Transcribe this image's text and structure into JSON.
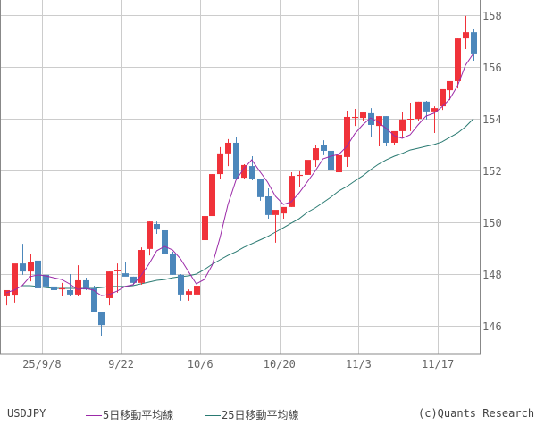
{
  "chart_data": {
    "type": "candlestick",
    "title": "USDJPY",
    "symbol": "USDJPY",
    "xlabel": "",
    "ylabel": "",
    "ylim": [
      144.9,
      158.6
    ],
    "yticks": [
      146,
      148,
      150,
      152,
      154,
      156,
      158
    ],
    "xticks": [
      {
        "label": "25/9/8",
        "index": 5
      },
      {
        "label": "9/22",
        "index": 15
      },
      {
        "label": "10/6",
        "index": 25
      },
      {
        "label": "10/20",
        "index": 35
      },
      {
        "label": "11/3",
        "index": 45
      },
      {
        "label": "11/17",
        "index": 55
      }
    ],
    "grid": true,
    "colors": {
      "up": "#f0323a",
      "down": "#4c87bb",
      "ma5": "#9b2aa8",
      "ma25": "#2a7a72",
      "grid": "#cccccc",
      "axis": "#888888"
    },
    "series": [
      {
        "name": "USDJPY",
        "ohlc": [
          [
            147.14,
            147.28,
            146.79,
            147.38
          ],
          [
            147.17,
            148.38,
            146.9,
            148.41
          ],
          [
            148.41,
            149.17,
            147.97,
            148.1
          ],
          [
            148.1,
            148.79,
            147.72,
            148.48
          ],
          [
            148.52,
            148.62,
            146.97,
            147.45
          ],
          [
            147.97,
            148.62,
            147.21,
            147.52
          ],
          [
            147.52,
            147.52,
            146.34,
            147.38
          ],
          [
            147.41,
            147.66,
            147.14,
            147.45
          ],
          [
            147.38,
            148.0,
            147.14,
            147.21
          ],
          [
            147.21,
            148.34,
            147.14,
            147.76
          ],
          [
            147.76,
            147.86,
            147.38,
            147.41
          ],
          [
            147.45,
            147.55,
            146.59,
            146.52
          ],
          [
            146.55,
            146.55,
            145.62,
            146.03
          ],
          [
            147.07,
            148.1,
            146.79,
            148.1
          ],
          [
            148.14,
            148.41,
            147.28,
            148.14
          ],
          [
            148.03,
            148.48,
            147.97,
            147.9
          ],
          [
            147.9,
            147.9,
            147.59,
            147.66
          ],
          [
            147.66,
            149.03,
            147.59,
            148.93
          ],
          [
            148.97,
            150.03,
            148.72,
            150.03
          ],
          [
            149.93,
            150.03,
            149.55,
            149.72
          ],
          [
            149.69,
            149.69,
            148.79,
            148.76
          ],
          [
            148.79,
            148.86,
            147.97,
            147.97
          ],
          [
            147.97,
            148.0,
            146.97,
            147.21
          ],
          [
            147.21,
            147.41,
            146.97,
            147.34
          ],
          [
            147.21,
            147.55,
            147.1,
            147.55
          ],
          [
            149.31,
            150.24,
            148.83,
            150.24
          ],
          [
            150.24,
            151.86,
            150.24,
            151.86
          ],
          [
            151.86,
            152.9,
            151.69,
            152.66
          ],
          [
            152.66,
            153.21,
            152.17,
            153.07
          ],
          [
            153.07,
            153.28,
            151.72,
            151.69
          ],
          [
            151.72,
            152.24,
            151.66,
            152.21
          ],
          [
            152.17,
            152.55,
            151.62,
            151.66
          ],
          [
            151.69,
            151.69,
            150.83,
            150.97
          ],
          [
            151.0,
            151.31,
            150.14,
            150.28
          ],
          [
            150.28,
            150.28,
            149.21,
            150.48
          ],
          [
            150.34,
            150.34,
            150.14,
            150.59
          ],
          [
            150.59,
            151.93,
            150.59,
            151.79
          ],
          [
            151.79,
            151.97,
            151.38,
            151.83
          ],
          [
            151.83,
            152.38,
            151.83,
            152.41
          ],
          [
            152.41,
            152.97,
            152.14,
            152.86
          ],
          [
            152.97,
            153.17,
            152.59,
            152.76
          ],
          [
            152.76,
            152.76,
            151.66,
            152.03
          ],
          [
            151.93,
            152.83,
            151.45,
            152.59
          ],
          [
            152.52,
            154.31,
            152.14,
            154.07
          ],
          [
            154.03,
            154.38,
            153.72,
            154.07
          ],
          [
            154.03,
            154.24,
            153.93,
            154.24
          ],
          [
            154.21,
            154.41,
            153.28,
            153.76
          ],
          [
            153.72,
            154.1,
            152.93,
            154.1
          ],
          [
            154.1,
            154.1,
            152.93,
            153.07
          ],
          [
            153.07,
            153.14,
            152.97,
            153.52
          ],
          [
            153.52,
            154.24,
            153.24,
            153.97
          ],
          [
            153.97,
            154.62,
            153.52,
            154.0
          ],
          [
            154.0,
            154.66,
            153.93,
            154.66
          ],
          [
            154.66,
            154.69,
            153.97,
            154.28
          ],
          [
            154.28,
            154.48,
            153.45,
            154.41
          ],
          [
            154.48,
            155.14,
            154.34,
            155.14
          ],
          [
            155.1,
            155.34,
            154.72,
            155.45
          ],
          [
            155.45,
            157.1,
            155.17,
            157.1
          ],
          [
            157.1,
            157.97,
            156.69,
            157.34
          ],
          [
            157.34,
            157.45,
            156.24,
            156.52
          ]
        ],
        "ohlc_format": "open,high,low,close"
      },
      {
        "name": "5日移動平均線",
        "values": [
          147.28,
          147.38,
          147.55,
          147.9,
          147.97,
          147.93,
          147.86,
          147.79,
          147.62,
          147.41,
          147.45,
          147.38,
          147.17,
          147.21,
          147.34,
          147.52,
          147.59,
          147.93,
          148.38,
          148.9,
          149.07,
          148.93,
          148.59,
          148.1,
          147.62,
          147.79,
          148.34,
          149.41,
          150.69,
          151.62,
          152.07,
          152.41,
          151.97,
          151.55,
          151.0,
          150.69,
          150.79,
          151.14,
          151.55,
          151.97,
          152.45,
          152.55,
          152.62,
          152.93,
          153.41,
          153.76,
          154.03,
          153.86,
          153.62,
          153.34,
          153.24,
          153.38,
          153.76,
          154.1,
          154.21,
          154.45,
          154.76,
          155.28,
          156.07,
          156.52
        ]
      },
      {
        "name": "25日移動平均線",
        "values": [
          null,
          null,
          147.55,
          147.55,
          147.52,
          147.48,
          147.45,
          147.45,
          147.45,
          147.45,
          147.45,
          147.45,
          147.48,
          147.52,
          147.52,
          147.52,
          147.55,
          147.62,
          147.69,
          147.76,
          147.79,
          147.86,
          147.9,
          147.93,
          148.0,
          148.17,
          148.38,
          148.55,
          148.72,
          148.86,
          149.03,
          149.17,
          149.31,
          149.45,
          149.62,
          149.79,
          149.97,
          150.14,
          150.38,
          150.55,
          150.76,
          150.97,
          151.21,
          151.38,
          151.59,
          151.79,
          152.03,
          152.24,
          152.41,
          152.55,
          152.66,
          152.79,
          152.86,
          152.93,
          153.0,
          153.1,
          153.28,
          153.45,
          153.69,
          154.0
        ]
      }
    ]
  },
  "legend": {
    "symbol": "USDJPY",
    "ma5_label": "5日移動平均線",
    "ma25_label": "25日移動平均線",
    "credit": "(c)Quants Research"
  }
}
